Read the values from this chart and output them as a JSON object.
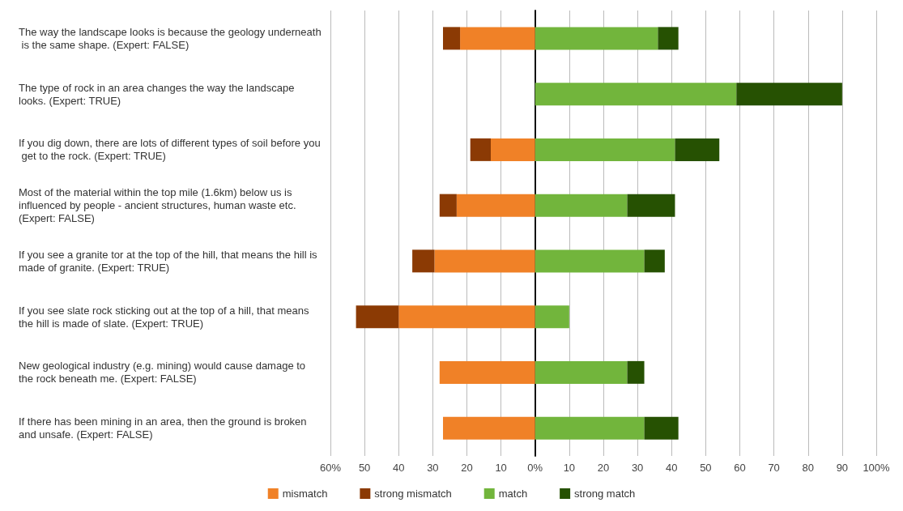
{
  "chart_data": {
    "type": "bar",
    "orientation": "horizontal",
    "stacked": true,
    "categories": [
      "The way the landscape looks is because the geology underneath is the same shape. (Expert: FALSE)",
      "The type of rock in an area changes the way the landscape looks. (Expert: TRUE)",
      "If you dig down, there are lots of different types of soil before you get to the rock. (Expert: TRUE)",
      "Most of the material within the top mile (1.6km) below us is influenced by people - ancient structures, human waste etc. (Expert: FALSE)",
      "If you see a granite tor at the top of the hill, that means the hill is made of granite. (Expert: TRUE)",
      "If you see slate rock sticking out at the top of a hill, that means the hill is made of slate. (Expert: TRUE)",
      "New geological industry (e.g. mining) would cause damage to the rock beneath me. (Expert: FALSE)",
      "If there has been mining in an area, then the ground is broken and unsafe. (Expert: FALSE)"
    ],
    "series": [
      {
        "name": "mismatch",
        "color": "#f08127",
        "values": [
          -22,
          null,
          -13,
          -23,
          -29.5,
          -40,
          -28,
          -27
        ]
      },
      {
        "name": "strong mismatch",
        "color": "#8b3a04",
        "values": [
          -5,
          null,
          -6,
          -5,
          -6.5,
          -12.5,
          null,
          null
        ]
      },
      {
        "name": "match",
        "color": "#72b53c",
        "values": [
          36,
          59,
          41,
          27,
          32,
          10,
          27,
          32
        ]
      },
      {
        "name": "strong match",
        "color": "#265102",
        "values": [
          6,
          31,
          13,
          14,
          6,
          null,
          5,
          10
        ]
      }
    ],
    "xlim": [
      -60,
      100
    ],
    "xticks": [
      {
        "value": -60,
        "label": "60%"
      },
      {
        "value": -50,
        "label": "50"
      },
      {
        "value": -40,
        "label": "40"
      },
      {
        "value": -30,
        "label": "30"
      },
      {
        "value": -20,
        "label": "20"
      },
      {
        "value": -10,
        "label": "10"
      },
      {
        "value": 0,
        "label": "0%"
      },
      10,
      20,
      30,
      40,
      50,
      60,
      70,
      80,
      90,
      {
        "value": 100,
        "label": "100%"
      }
    ],
    "grid": "x",
    "legend": "bottom"
  }
}
